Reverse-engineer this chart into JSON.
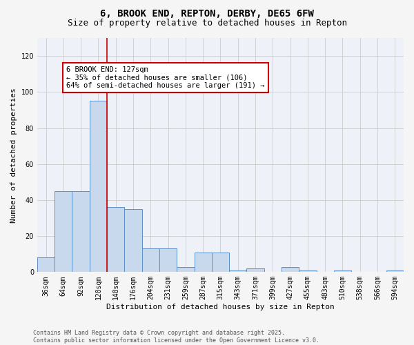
{
  "title1": "6, BROOK END, REPTON, DERBY, DE65 6FW",
  "title2": "Size of property relative to detached houses in Repton",
  "xlabel": "Distribution of detached houses by size in Repton",
  "ylabel": "Number of detached properties",
  "categories": [
    "36sqm",
    "64sqm",
    "92sqm",
    "120sqm",
    "148sqm",
    "176sqm",
    "204sqm",
    "231sqm",
    "259sqm",
    "287sqm",
    "315sqm",
    "343sqm",
    "371sqm",
    "399sqm",
    "427sqm",
    "455sqm",
    "483sqm",
    "510sqm",
    "538sqm",
    "566sqm",
    "594sqm"
  ],
  "values": [
    8,
    45,
    45,
    95,
    36,
    35,
    13,
    13,
    3,
    11,
    11,
    1,
    2,
    0,
    3,
    1,
    0,
    1,
    0,
    0,
    1
  ],
  "bar_color": "#c8d9ed",
  "bar_edge_color": "#5b8fc9",
  "property_line_x": 3.5,
  "annotation_text": "6 BROOK END: 127sqm\n← 35% of detached houses are smaller (106)\n64% of semi-detached houses are larger (191) →",
  "annotation_box_color": "#ffffff",
  "annotation_box_edge_color": "#cc0000",
  "vline_color": "#cc0000",
  "ylim": [
    0,
    130
  ],
  "yticks": [
    0,
    20,
    40,
    60,
    80,
    100,
    120
  ],
  "grid_color": "#d0d0d0",
  "background_color": "#eef2f8",
  "fig_background_color": "#f5f5f5",
  "footer_text": "Contains HM Land Registry data © Crown copyright and database right 2025.\nContains public sector information licensed under the Open Government Licence v3.0.",
  "title_fontsize": 10,
  "subtitle_fontsize": 9,
  "axis_label_fontsize": 8,
  "tick_fontsize": 7,
  "annotation_fontsize": 7.5,
  "footer_fontsize": 6
}
